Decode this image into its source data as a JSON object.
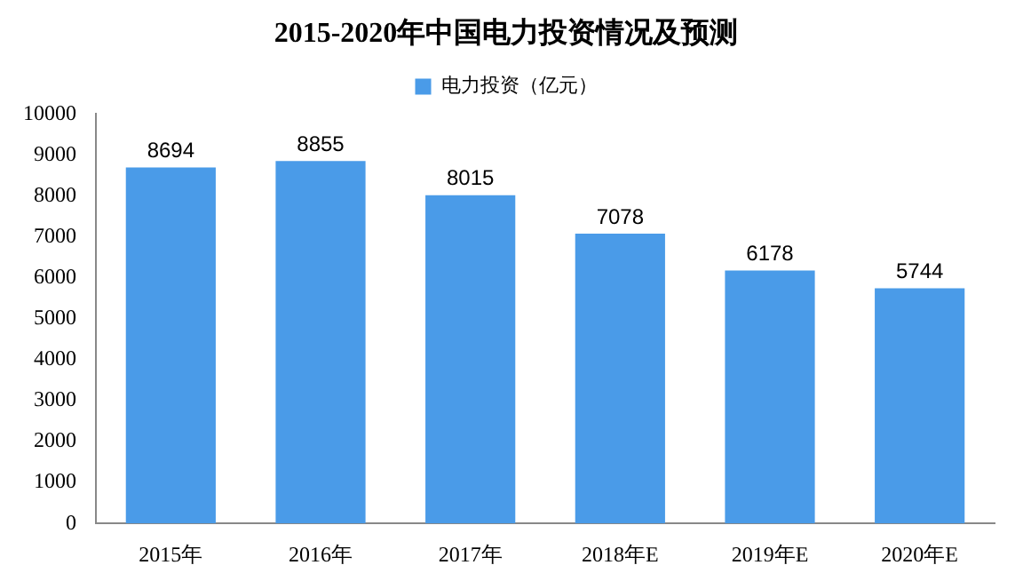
{
  "chart_data": {
    "type": "bar",
    "title": "2015-2020年中国电力投资情况及预测",
    "categories": [
      "2015年",
      "2016年",
      "2017年",
      "2018年E",
      "2019年E",
      "2020年E"
    ],
    "series": [
      {
        "name": "电力投资（亿元）",
        "color": "#4a9be8",
        "values": [
          8694,
          8855,
          8015,
          7078,
          6178,
          5744
        ]
      }
    ],
    "ylim": [
      0,
      10000
    ],
    "yticks": [
      0,
      1000,
      2000,
      3000,
      4000,
      5000,
      6000,
      7000,
      8000,
      9000,
      10000
    ],
    "grid": false,
    "legend": "top",
    "data_labels": true
  }
}
